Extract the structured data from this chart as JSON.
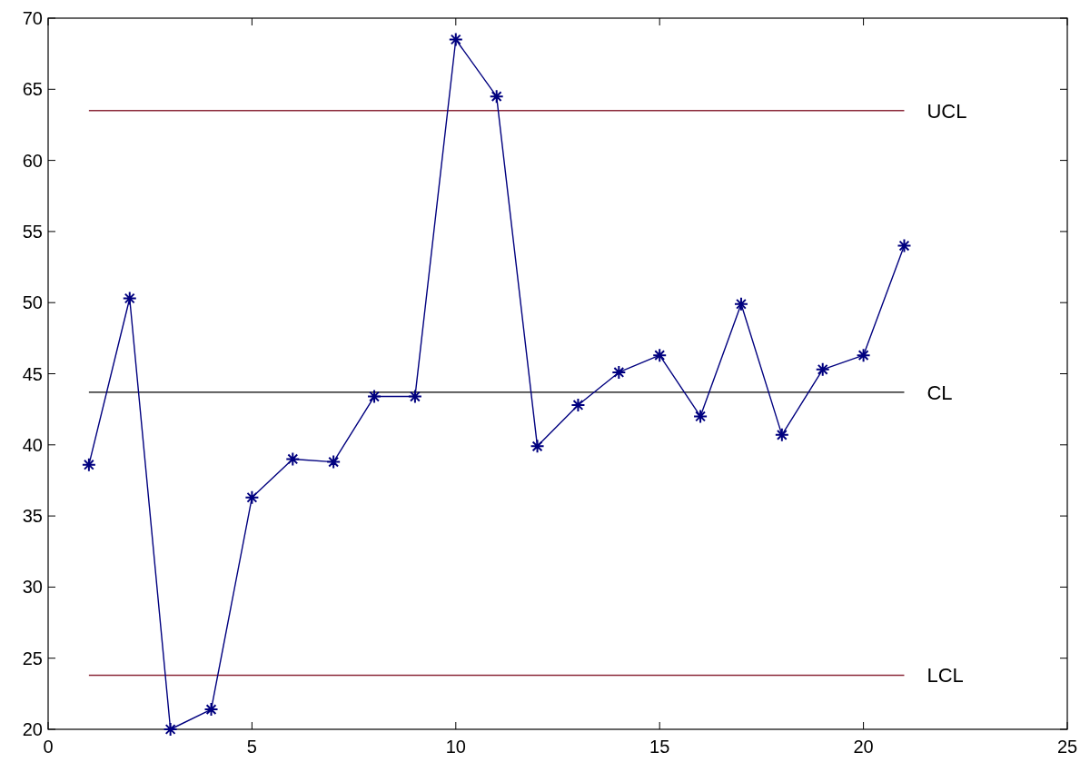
{
  "chart_data": {
    "type": "line",
    "xlim": [
      0,
      25
    ],
    "ylim": [
      20,
      70
    ],
    "xticks": [
      0,
      5,
      10,
      15,
      20,
      25
    ],
    "yticks": [
      20,
      25,
      30,
      35,
      40,
      45,
      50,
      55,
      60,
      65,
      70
    ],
    "grid": false,
    "series": [
      {
        "color": "#00007f",
        "marker": "cross",
        "x": [
          1,
          2,
          3,
          4,
          5,
          6,
          7,
          8,
          9,
          10,
          11,
          12,
          13,
          14,
          15,
          16,
          17,
          18,
          19,
          20,
          21
        ],
        "values": [
          38.6,
          50.3,
          20.0,
          21.4,
          36.3,
          39.0,
          38.8,
          43.4,
          43.4,
          68.5,
          64.5,
          39.9,
          42.8,
          45.1,
          46.3,
          42.0,
          49.9,
          40.7,
          45.3,
          46.3,
          54.0
        ]
      },
      {
        "name": "UCL",
        "color": "#8b2a3a",
        "marker": "none",
        "x": [
          1,
          21
        ],
        "values": [
          63.5,
          63.5
        ]
      },
      {
        "name": "CL",
        "color": "#000000",
        "marker": "none",
        "x": [
          1,
          21
        ],
        "values": [
          43.7,
          43.7
        ]
      },
      {
        "name": "LCL",
        "color": "#8b2a3a",
        "marker": "none",
        "x": [
          1,
          21
        ],
        "values": [
          23.8,
          23.8
        ]
      }
    ]
  }
}
